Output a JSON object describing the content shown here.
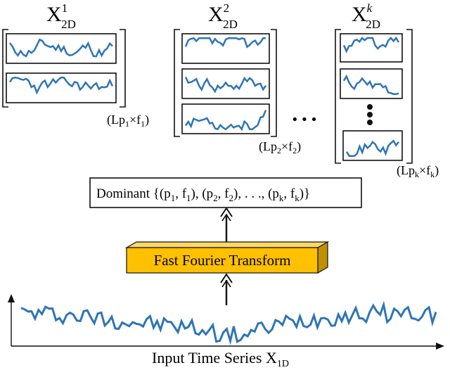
{
  "groups": [
    {
      "symbol": "X",
      "sub": "2D",
      "sup": "1",
      "dims": {
        "base": "Lp",
        "base_sub": "1",
        "times": "×",
        "freq": "f",
        "freq_sub": "1"
      }
    },
    {
      "symbol": "X",
      "sub": "2D",
      "sup": "2",
      "dims": {
        "base": "Lp",
        "base_sub": "2",
        "times": "×",
        "freq": "f",
        "freq_sub": "2"
      }
    },
    {
      "symbol": "X",
      "sub": "2D",
      "sup": "k",
      "dims": {
        "base": "Lp",
        "base_sub": "k",
        "times": "×",
        "freq": "f",
        "freq_sub": "k"
      }
    }
  ],
  "ellipsis": "•••",
  "dominant": {
    "prefix": "Dominant {(p",
    "s1": "1",
    "mid1": ", f",
    "s2": "1",
    "mid2": "), (p",
    "s3": "2",
    "mid3": ", f",
    "s4": "2",
    "mid4": "), . . ., (p",
    "s5": "k",
    "mid5": ", f",
    "s6": "k",
    "suffix": ")}"
  },
  "fft_label": "Fast Fourier Transform",
  "input_label": {
    "text": "Input Time Series X",
    "sub": "1D"
  },
  "colors": {
    "signal": "#2e75b6",
    "fft_face": "#ffc000",
    "fft_top": "#ffd966",
    "fft_side": "#bf9000",
    "stroke": "#111111"
  }
}
